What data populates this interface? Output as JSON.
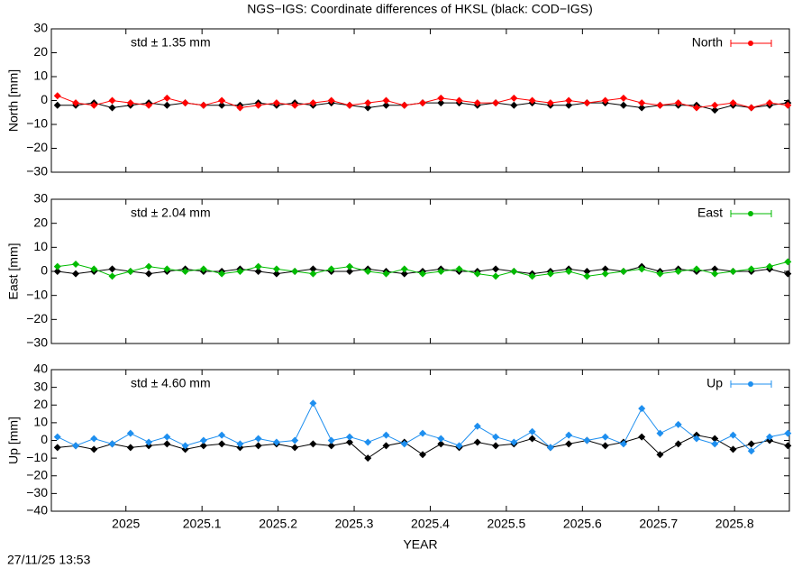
{
  "footer": "27/11/25 13:53",
  "chart_data": [
    {
      "type": "line",
      "title": "NGS−IGS: Coordinate differences of HKSL (black: COD−IGS)",
      "ylabel": "North [mm]",
      "annotation": "std ± 1.35 mm",
      "x": [
        2024.91,
        2024.934,
        2024.958,
        2024.982,
        2025.006,
        2025.03,
        2025.054,
        2025.078,
        2025.102,
        2025.126,
        2025.15,
        2025.174,
        2025.198,
        2025.222,
        2025.246,
        2025.27,
        2025.294,
        2025.318,
        2025.342,
        2025.366,
        2025.39,
        2025.414,
        2025.438,
        2025.462,
        2025.486,
        2025.51,
        2025.534,
        2025.558,
        2025.582,
        2025.606,
        2025.63,
        2025.654,
        2025.678,
        2025.702,
        2025.726,
        2025.75,
        2025.774,
        2025.798,
        2025.822,
        2025.846,
        2025.87
      ],
      "series": [
        {
          "color": "#000000",
          "values": [
            -2,
            -2,
            -1,
            -3,
            -2,
            -1,
            -2,
            -1,
            -2,
            -2,
            -2,
            -1,
            -2,
            -1,
            -2,
            -1,
            -2,
            -3,
            -2,
            -2,
            -1,
            -1,
            -1,
            -2,
            -1,
            -2,
            -1,
            -2,
            -2,
            -1,
            -1,
            -2,
            -3,
            -2,
            -2,
            -2,
            -4,
            -2,
            -3,
            -2,
            -1
          ]
        },
        {
          "name": "North",
          "color": "#ff0000",
          "values": [
            2,
            -1,
            -2,
            0,
            -1,
            -2,
            1,
            -1,
            -2,
            0,
            -3,
            -2,
            -1,
            -2,
            -1,
            0,
            -2,
            -1,
            0,
            -2,
            -1,
            1,
            0,
            -1,
            -1,
            1,
            0,
            -1,
            0,
            -1,
            0,
            1,
            -1,
            -2,
            -1,
            -3,
            -2,
            -1,
            -3,
            -1,
            -2
          ]
        }
      ],
      "xlim": [
        2024.902,
        2025.872
      ],
      "xticks": [
        2025,
        2025.1,
        2025.2,
        2025.3,
        2025.4,
        2025.5,
        2025.6,
        2025.7,
        2025.8
      ],
      "ylim": [
        -30,
        30
      ],
      "yticks": [
        {
          "value": -30,
          "label": "−30"
        },
        {
          "value": -20,
          "label": "−20"
        },
        {
          "value": -10,
          "label": "−10"
        },
        0,
        10,
        20,
        30
      ],
      "legend": "top-right"
    },
    {
      "type": "line",
      "ylabel": "East [mm]",
      "annotation": "std ± 2.04 mm",
      "x": [
        2024.91,
        2024.934,
        2024.958,
        2024.982,
        2025.006,
        2025.03,
        2025.054,
        2025.078,
        2025.102,
        2025.126,
        2025.15,
        2025.174,
        2025.198,
        2025.222,
        2025.246,
        2025.27,
        2025.294,
        2025.318,
        2025.342,
        2025.366,
        2025.39,
        2025.414,
        2025.438,
        2025.462,
        2025.486,
        2025.51,
        2025.534,
        2025.558,
        2025.582,
        2025.606,
        2025.63,
        2025.654,
        2025.678,
        2025.702,
        2025.726,
        2025.75,
        2025.774,
        2025.798,
        2025.822,
        2025.846,
        2025.87
      ],
      "series": [
        {
          "color": "#000000",
          "values": [
            0,
            -1,
            0,
            1,
            0,
            -1,
            0,
            1,
            0,
            0,
            1,
            0,
            -1,
            0,
            1,
            0,
            0,
            1,
            0,
            -1,
            0,
            1,
            0,
            0,
            1,
            0,
            -1,
            0,
            1,
            0,
            1,
            0,
            2,
            0,
            1,
            0,
            1,
            0,
            0,
            1,
            -1
          ]
        },
        {
          "name": "East",
          "color": "#00bb00",
          "values": [
            2,
            3,
            1,
            -2,
            0,
            2,
            1,
            0,
            1,
            -1,
            0,
            2,
            1,
            0,
            -1,
            1,
            2,
            0,
            -1,
            1,
            -1,
            0,
            1,
            -1,
            -2,
            0,
            -2,
            -1,
            0,
            -2,
            -1,
            0,
            1,
            -1,
            0,
            1,
            -1,
            0,
            1,
            2,
            4
          ]
        }
      ],
      "xlim": [
        2024.902,
        2025.872
      ],
      "xticks": [
        2025,
        2025.1,
        2025.2,
        2025.3,
        2025.4,
        2025.5,
        2025.6,
        2025.7,
        2025.8
      ],
      "ylim": [
        -30,
        30
      ],
      "yticks": [
        {
          "value": -30,
          "label": "−30"
        },
        {
          "value": -20,
          "label": "−20"
        },
        {
          "value": -10,
          "label": "−10"
        },
        0,
        10,
        20,
        30
      ],
      "legend": "top-right"
    },
    {
      "type": "line",
      "ylabel": "Up [mm]",
      "xlabel": "YEAR",
      "annotation": "std ± 4.60 mm",
      "x": [
        2024.91,
        2024.934,
        2024.958,
        2024.982,
        2025.006,
        2025.03,
        2025.054,
        2025.078,
        2025.102,
        2025.126,
        2025.15,
        2025.174,
        2025.198,
        2025.222,
        2025.246,
        2025.27,
        2025.294,
        2025.318,
        2025.342,
        2025.366,
        2025.39,
        2025.414,
        2025.438,
        2025.462,
        2025.486,
        2025.51,
        2025.534,
        2025.558,
        2025.582,
        2025.606,
        2025.63,
        2025.654,
        2025.678,
        2025.702,
        2025.726,
        2025.75,
        2025.774,
        2025.798,
        2025.822,
        2025.846,
        2025.87
      ],
      "series": [
        {
          "color": "#000000",
          "values": [
            -4,
            -3,
            -5,
            -2,
            -4,
            -3,
            -2,
            -5,
            -3,
            -2,
            -4,
            -3,
            -2,
            -4,
            -2,
            -3,
            -1,
            -10,
            -3,
            -1,
            -8,
            -2,
            -4,
            -1,
            -3,
            -2,
            1,
            -4,
            -2,
            0,
            -3,
            -1,
            2,
            -8,
            -2,
            3,
            1,
            -5,
            -2,
            0,
            -3
          ]
        },
        {
          "name": "Up",
          "color": "#1e8fef",
          "values": [
            2,
            -3,
            1,
            -2,
            4,
            -1,
            2,
            -3,
            0,
            3,
            -2,
            1,
            -1,
            0,
            21,
            0,
            2,
            -1,
            3,
            -2,
            4,
            1,
            -3,
            8,
            2,
            -1,
            5,
            -4,
            3,
            0,
            2,
            -2,
            18,
            4,
            9,
            1,
            -2,
            3,
            -6,
            2,
            4
          ]
        }
      ],
      "xlim": [
        2024.902,
        2025.872
      ],
      "xticks": [
        2025,
        2025.1,
        2025.2,
        2025.3,
        2025.4,
        2025.5,
        2025.6,
        2025.7,
        2025.8
      ],
      "ylim": [
        -40,
        40
      ],
      "yticks": [
        {
          "value": -40,
          "label": "−40"
        },
        {
          "value": -30,
          "label": "−30"
        },
        {
          "value": -20,
          "label": "−20"
        },
        {
          "value": -10,
          "label": "−10"
        },
        0,
        10,
        20,
        30,
        40
      ],
      "legend": "top-right"
    }
  ]
}
